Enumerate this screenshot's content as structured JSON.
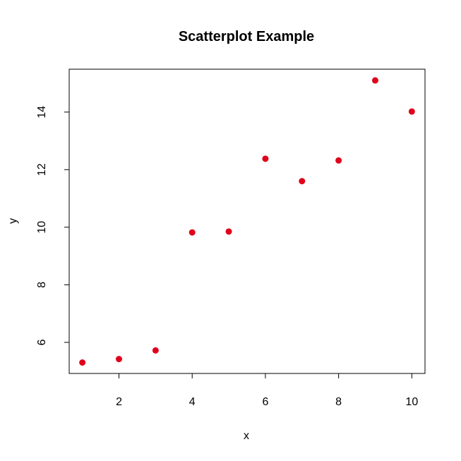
{
  "chart_data": {
    "type": "scatter",
    "title": "Scatterplot Example",
    "xlabel": "x",
    "ylabel": "y",
    "xlim": [
      0.64,
      10.36
    ],
    "ylim": [
      4.92,
      15.49
    ],
    "xticks": [
      2,
      4,
      6,
      8,
      10
    ],
    "yticks": [
      6,
      8,
      10,
      12,
      14
    ],
    "grid": false,
    "point_color": "#e0001b",
    "x": [
      1,
      2,
      3,
      4,
      5,
      6,
      7,
      8,
      9,
      10
    ],
    "y": [
      5.3,
      5.42,
      5.72,
      9.82,
      9.85,
      12.38,
      11.6,
      12.32,
      15.1,
      14.02
    ]
  }
}
